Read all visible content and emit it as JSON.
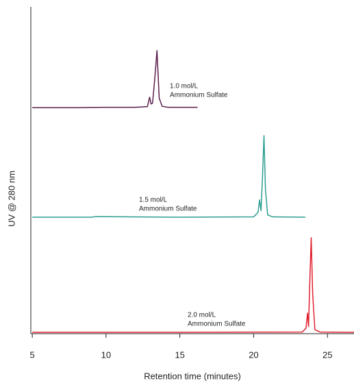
{
  "chart_data": {
    "type": "line",
    "xlabel": "Retention time (minutes)",
    "ylabel": "UV @ 280 nm",
    "xlim": [
      4.9,
      26.8
    ],
    "xticks": [
      5,
      10,
      15,
      20,
      25
    ],
    "ylim": [
      0,
      100
    ],
    "series": [
      {
        "color": "#5a1e4a",
        "x": [
          5,
          8,
          10,
          12,
          12.8,
          12.95,
          13.05,
          13.15,
          13.3,
          13.45,
          13.6,
          13.8,
          14.2,
          16.2
        ],
        "values": [
          69.1,
          69.1,
          69.2,
          69.2,
          69.4,
          72.3,
          70.2,
          70.5,
          78,
          86.6,
          72,
          69.5,
          69.2,
          69.2
        ]
      },
      {
        "color": "#2a9d8f",
        "x": [
          5,
          9,
          9.3,
          15,
          20,
          20.3,
          20.4,
          20.5,
          20.6,
          20.7,
          20.8,
          20.95,
          21.3,
          23.5
        ],
        "values": [
          35.5,
          35.5,
          35.7,
          35.5,
          35.6,
          37,
          40.8,
          37.5,
          48,
          60.5,
          44,
          36.2,
          35.6,
          35.5
        ]
      },
      {
        "color": "#e0202e",
        "x": [
          5,
          15,
          23.3,
          23.55,
          23.65,
          23.72,
          23.8,
          23.9,
          24.0,
          24.15,
          24.5,
          26.8
        ],
        "values": [
          0.2,
          0.2,
          0.3,
          1.5,
          6.1,
          2,
          15,
          29.2,
          12,
          1,
          0.3,
          0.2
        ]
      }
    ],
    "annotations": [
      [
        "1.0 mol/L",
        "Ammonium  Sulfate"
      ],
      [
        "1.5 mol/L",
        "Ammonium  Sulfate"
      ],
      [
        "2.0 mol/L",
        "Ammonium  Sulfate"
      ]
    ]
  }
}
